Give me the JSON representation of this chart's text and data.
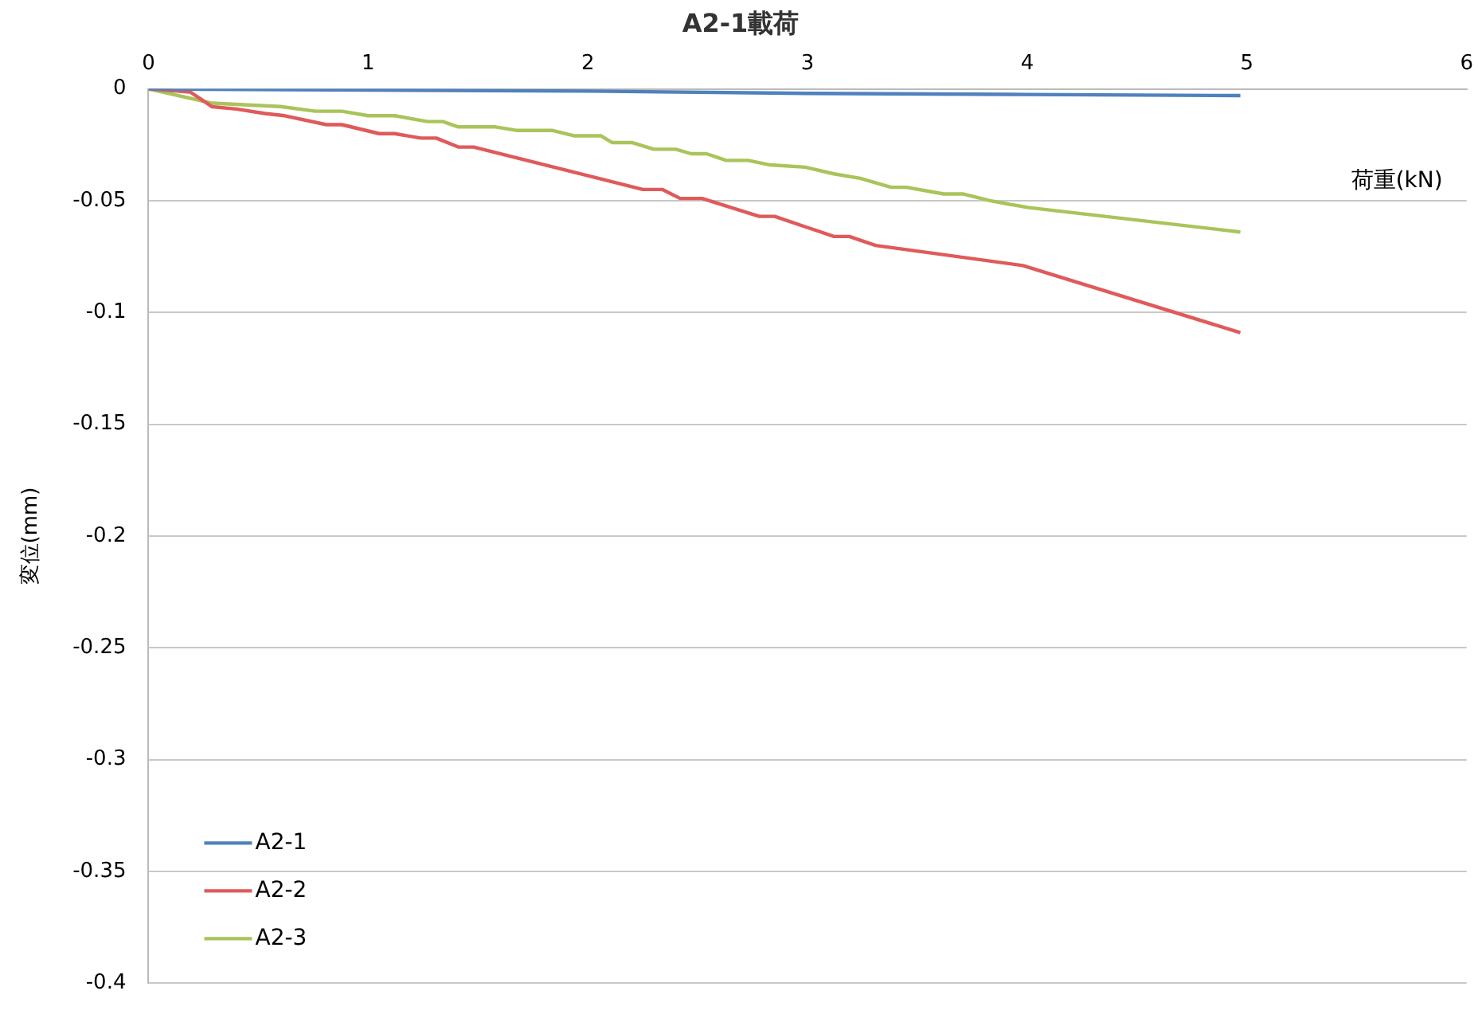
{
  "chart_data": {
    "type": "line",
    "title": "A2-1載荷",
    "xlabel": "荷重(kN)",
    "ylabel": "変位(mm)",
    "xlim": [
      0,
      6
    ],
    "xticks": [
      0,
      1,
      2,
      3,
      4,
      5,
      6
    ],
    "ylim": [
      -0.4,
      0
    ],
    "yticks": [
      0,
      -0.05,
      -0.1,
      -0.15,
      -0.2,
      -0.25,
      -0.3,
      -0.35,
      -0.4
    ],
    "grid": "y",
    "legend": "bottom left",
    "marker": "none",
    "line_style": "solid",
    "series": [
      {
        "name": "A2-1",
        "color": "#4f81bd",
        "x": [
          0,
          1,
          2,
          3,
          4,
          4.97
        ],
        "values": [
          0,
          -0.0005,
          -0.001,
          -0.002,
          -0.0025,
          -0.003
        ]
      },
      {
        "name": "A2-2",
        "color": "#e05a5a",
        "x": [
          0,
          0.19,
          0.29,
          0.4,
          0.53,
          0.62,
          0.81,
          0.88,
          1.05,
          1.12,
          1.24,
          1.31,
          1.41,
          1.48,
          2.25,
          2.34,
          2.42,
          2.52,
          2.78,
          2.85,
          3.12,
          3.19,
          3.31,
          3.98,
          4.97
        ],
        "values": [
          0,
          -0.0014,
          -0.008,
          -0.009,
          -0.011,
          -0.012,
          -0.016,
          -0.016,
          -0.02,
          -0.02,
          -0.022,
          -0.022,
          -0.026,
          -0.026,
          -0.045,
          -0.045,
          -0.049,
          -0.049,
          -0.057,
          -0.057,
          -0.066,
          -0.066,
          -0.07,
          -0.079,
          -0.109
        ]
      },
      {
        "name": "A2-3",
        "color": "#a9c45a",
        "x": [
          0,
          0.29,
          0.6,
          0.76,
          0.88,
          1.0,
          1.12,
          1.27,
          1.34,
          1.41,
          1.58,
          1.68,
          1.84,
          1.94,
          2.06,
          2.11,
          2.2,
          2.3,
          2.4,
          2.47,
          2.54,
          2.63,
          2.73,
          2.83,
          2.99,
          3.12,
          3.24,
          3.38,
          3.45,
          3.62,
          3.71,
          3.83,
          4.0,
          4.97
        ],
        "values": [
          0,
          -0.0064,
          -0.0079,
          -0.01,
          -0.01,
          -0.012,
          -0.012,
          -0.0146,
          -0.0146,
          -0.017,
          -0.017,
          -0.0186,
          -0.0186,
          -0.021,
          -0.021,
          -0.024,
          -0.024,
          -0.027,
          -0.027,
          -0.029,
          -0.029,
          -0.032,
          -0.032,
          -0.034,
          -0.035,
          -0.038,
          -0.04,
          -0.044,
          -0.044,
          -0.047,
          -0.047,
          -0.05,
          -0.053,
          -0.064
        ]
      }
    ]
  }
}
